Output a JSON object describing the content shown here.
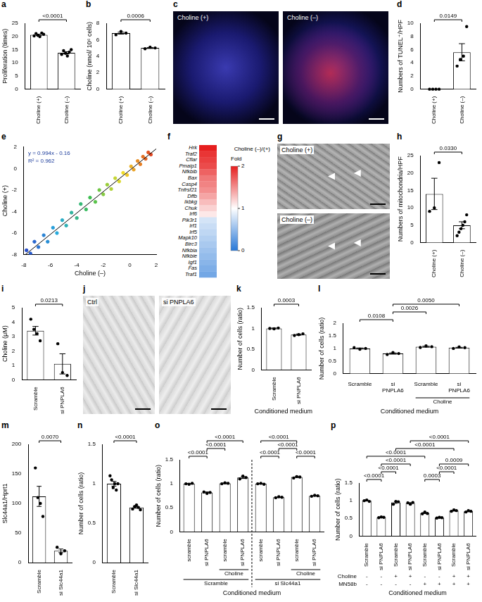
{
  "chart_data": [
    {
      "panel": "a",
      "type": "bar",
      "categories": [
        "Choline (+)",
        "Choline (–)"
      ],
      "y_label": "Proliferation (times)",
      "values": [
        20.6,
        13.8
      ],
      "errors": [
        0.25,
        0.4
      ],
      "points": [
        [
          20.2,
          21.1,
          20.4,
          19.9,
          21.3,
          20.8
        ],
        [
          13.2,
          14.6,
          13.6,
          12.6,
          14.1,
          15.0
        ]
      ],
      "ylim": [
        0,
        25
      ],
      "yticks": [
        0,
        5,
        10,
        15,
        20,
        25
      ],
      "comparisons": [
        {
          "from": 0,
          "to": 1,
          "label": "<0.0001"
        }
      ]
    },
    {
      "panel": "b",
      "type": "bar",
      "categories": [
        "Choline (+)",
        "Choline (–)"
      ],
      "y_label": "Choline (nmol/ 10⁶ cells)",
      "values": [
        6.8,
        5.0
      ],
      "errors": [
        0.12,
        0.06
      ],
      "points": [
        [
          6.6,
          7.0,
          6.8
        ],
        [
          4.9,
          5.1,
          5.0
        ]
      ],
      "ylim": [
        0,
        8
      ],
      "yticks": [
        0,
        2,
        4,
        6,
        8
      ],
      "comparisons": [
        {
          "from": 0,
          "to": 1,
          "label": "0.0006"
        }
      ]
    },
    {
      "panel": "d",
      "type": "bar",
      "categories": [
        "Choline (+)",
        "Choline (–)"
      ],
      "y_label": "Numbers of TUNEL⁺/HPF",
      "values": [
        0,
        5.6
      ],
      "errors": [
        0,
        1.3
      ],
      "points": [
        [
          0,
          0,
          0,
          0
        ],
        [
          3.5,
          4.5,
          5.0,
          9.5
        ]
      ],
      "ylim": [
        0,
        10
      ],
      "yticks": [
        0,
        2,
        4,
        6,
        8,
        10
      ],
      "comparisons": [
        {
          "from": 0,
          "to": 1,
          "label": "0.0149"
        }
      ]
    },
    {
      "panel": "e",
      "type": "scatter",
      "x_label": "Choline (–)",
      "y_label": "Choline (+)",
      "annotations": [
        "y = 0.994x - 0.16",
        "R² = 0.962"
      ],
      "x": [
        -7.8,
        -7.5,
        -7.2,
        -6.9,
        -6.5,
        -6.2,
        -5.8,
        -5.5,
        -5.1,
        -4.8,
        -4.4,
        -4.0,
        -3.7,
        -3.3,
        -3.0,
        -2.6,
        -2.3,
        -2.0,
        -1.7,
        -1.4,
        -1.1,
        -0.8,
        -0.5,
        -0.2,
        0.1,
        0.3,
        0.6,
        0.8,
        1.0,
        1.2,
        1.4,
        1.6
      ],
      "values": [
        -7.6,
        -7.9,
        -6.8,
        -7.3,
        -6.2,
        -6.8,
        -5.5,
        -6.0,
        -4.8,
        -5.3,
        -4.1,
        -4.6,
        -3.3,
        -3.8,
        -2.7,
        -3.1,
        -2.0,
        -2.4,
        -1.5,
        -1.9,
        -0.9,
        -1.2,
        -0.4,
        -0.6,
        0.2,
        -0.1,
        0.7,
        0.4,
        1.1,
        0.9,
        1.5,
        1.3
      ],
      "fit": {
        "x": [
          -8,
          2
        ],
        "values": [
          -8.112,
          1.828
        ]
      },
      "xlim": [
        -8,
        2
      ],
      "ylim": [
        -8,
        2
      ],
      "xticks": [
        -8,
        -6,
        -4,
        -2,
        0,
        2
      ],
      "yticks": [
        -8,
        -6,
        -4,
        -2,
        0,
        2
      ]
    },
    {
      "panel": "f",
      "type": "heatmap",
      "title": "Choline (–)/(+)",
      "rows": [
        "Hrk",
        "Traf2",
        "Cflar",
        "Pmaip1",
        "Nfkbib",
        "Bax",
        "Casp4",
        "Tnfrsf21",
        "Dffb",
        "Ikbkg",
        "Chuk",
        "Irf6",
        "Pik3r1",
        "Irf1",
        "Irf5",
        "Mapk10",
        "Birc3",
        "Nfkbia",
        "Nfkbie",
        "Igf1",
        "Fas",
        "Traf1"
      ],
      "values": [
        2.0,
        1.9,
        1.85,
        1.8,
        1.7,
        1.6,
        1.55,
        1.5,
        1.4,
        1.3,
        1.2,
        1.1,
        0.8,
        0.75,
        0.7,
        0.65,
        0.6,
        0.55,
        0.5,
        0.45,
        0.4,
        0.35
      ],
      "colorbar": {
        "label": "Fold",
        "range": [
          0,
          2
        ],
        "ticks": [
          0,
          1,
          2
        ]
      }
    },
    {
      "panel": "h",
      "type": "bar",
      "categories": [
        "Choline (+)",
        "Choline (–)"
      ],
      "y_label": "Numbers of mitochondria/HPF",
      "values": [
        14,
        5
      ],
      "errors": [
        4.5,
        1.0
      ],
      "points": [
        [
          9,
          10,
          23
        ],
        [
          2,
          3,
          4,
          5,
          6,
          8
        ]
      ],
      "ylim": [
        0,
        25
      ],
      "yticks": [
        0,
        5,
        10,
        15,
        20,
        25
      ],
      "comparisons": [
        {
          "from": 0,
          "to": 1,
          "label": "0.0330"
        }
      ]
    },
    {
      "panel": "i",
      "type": "bar",
      "categories": [
        "Scramble",
        "si PNPLA6"
      ],
      "y_label": "Choline (μM)",
      "values": [
        3.4,
        1.1
      ],
      "errors": [
        0.3,
        0.7
      ],
      "points": [
        [
          4.2,
          3.5,
          3.2,
          2.7
        ],
        [
          2.5,
          0.5,
          0.3
        ]
      ],
      "ylim": [
        0,
        5
      ],
      "yticks": [
        0,
        1,
        2,
        3,
        4,
        5
      ],
      "comparisons": [
        {
          "from": 0,
          "to": 1,
          "label": "0.0213"
        }
      ]
    },
    {
      "panel": "k",
      "type": "bar",
      "categories": [
        "Scramble",
        "si PNPLA6"
      ],
      "y_label": "Number of cells (ratio)",
      "x_label": "Conditioned medium",
      "values": [
        1.0,
        0.85
      ],
      "errors": [
        0.01,
        0.015
      ],
      "points": [
        [
          1.0,
          0.99,
          1.01
        ],
        [
          0.83,
          0.85,
          0.87
        ]
      ],
      "ylim": [
        0,
        1.5
      ],
      "yticks": [
        0,
        0.5,
        1,
        1.5
      ],
      "comparisons": [
        {
          "from": 0,
          "to": 1,
          "label": "0.0003"
        }
      ]
    },
    {
      "panel": "l",
      "type": "bar",
      "categories": [
        "Scramble",
        "si PNPLA6",
        "Scramble",
        "si PNPLA6"
      ],
      "y_label": "Number of cells (ratio)",
      "x_label": "Conditioned medium",
      "values": [
        1.0,
        0.8,
        1.07,
        1.03
      ],
      "errors": [
        0.02,
        0.025,
        0.02,
        0.015
      ],
      "points": [
        [
          1.03,
          0.97,
          1.0
        ],
        [
          0.76,
          0.84,
          0.8
        ],
        [
          1.04,
          1.1,
          1.07
        ],
        [
          1.0,
          1.06,
          1.03
        ]
      ],
      "ylim": [
        0,
        2
      ],
      "yticks": [
        0,
        0.5,
        1,
        1.5,
        2
      ],
      "comparisons": [
        {
          "from": 0,
          "to": 1,
          "label": "0.0108"
        },
        {
          "from": 1,
          "to": 2,
          "label": "0.0026"
        },
        {
          "from": 1,
          "to": 3,
          "label": "0.0050"
        }
      ],
      "groups": [
        [
          {
            "label": "Choline",
            "from": 2,
            "to": 3
          }
        ]
      ]
    },
    {
      "panel": "m",
      "type": "bar",
      "categories": [
        "Scramble",
        "si Slc44a1"
      ],
      "y_label": "Slc44a1/Hprt1",
      "values": [
        112,
        20
      ],
      "errors": [
        17,
        3
      ],
      "points": [
        [
          160,
          110,
          100,
          78
        ],
        [
          26,
          15,
          20
        ]
      ],
      "ylim": [
        0,
        200
      ],
      "yticks": [
        0,
        50,
        100,
        150,
        200
      ],
      "comparisons": [
        {
          "from": 0,
          "to": 1,
          "label": "0.0070"
        }
      ]
    },
    {
      "panel": "n",
      "type": "bar",
      "categories": [
        "Scramble",
        "si Slc44a1"
      ],
      "y_label": "Number of cells (ratio)",
      "values": [
        1.0,
        0.7
      ],
      "errors": [
        0.03,
        0.01
      ],
      "points": [
        [
          1.1,
          1.05,
          0.95,
          1.0,
          0.92,
          1.0
        ],
        [
          0.68,
          0.71,
          0.73,
          0.7,
          0.67
        ]
      ],
      "ylim": [
        0,
        1.5
      ],
      "yticks": [
        0,
        0.5,
        1,
        1.5
      ],
      "comparisons": [
        {
          "from": 0,
          "to": 1,
          "label": "<0.0001"
        }
      ]
    },
    {
      "panel": "o",
      "type": "bar",
      "categories": [
        "scramble",
        "si PNPLA6",
        "scramble",
        "si PNPLA6",
        "scramble",
        "si PNPLA6",
        "scramble",
        "si PNPLA6"
      ],
      "y_label": "Number of cells (ratio)",
      "x_label": "Conditioned medium",
      "values": [
        1.0,
        0.82,
        1.01,
        1.13,
        1.0,
        0.72,
        1.14,
        0.75
      ],
      "errors": [
        0.005,
        0.01,
        0.008,
        0.02,
        0.005,
        0.006,
        0.01,
        0.006
      ],
      "points": [
        [
          1.0,
          0.99,
          1.01
        ],
        [
          0.83,
          0.8,
          0.82
        ],
        [
          1.0,
          1.02,
          1.01
        ],
        [
          1.1,
          1.16,
          1.13
        ],
        [
          1.0,
          1.01,
          0.99
        ],
        [
          0.71,
          0.73,
          0.72
        ],
        [
          1.12,
          1.15,
          1.14
        ],
        [
          0.74,
          0.76,
          0.75
        ]
      ],
      "ylim": [
        0,
        1.5
      ],
      "yticks": [
        0,
        0.5,
        1,
        1.5
      ],
      "comparisons": [
        {
          "from": 0,
          "to": 1,
          "label": "<0.0001"
        },
        {
          "from": 1,
          "to": 2,
          "label": "<0.0001"
        },
        {
          "from": 1,
          "to": 3,
          "label": "<0.0001"
        },
        {
          "from": 4,
          "to": 5,
          "label": "<0.0001"
        },
        {
          "from": 5,
          "to": 6,
          "label": "<0.0001"
        },
        {
          "from": 6,
          "to": 7,
          "label": "<0.0001"
        },
        {
          "from": 4,
          "to": 6,
          "label": "<0.0001"
        }
      ],
      "groups": [
        [
          {
            "label": "Choline",
            "from": 2,
            "to": 3
          },
          {
            "label": "Choline",
            "from": 6,
            "to": 7
          }
        ],
        [
          {
            "label": "Scramble",
            "from": 0,
            "to": 3
          },
          {
            "label": "si Slc44a1",
            "from": 4,
            "to": 7
          }
        ]
      ]
    },
    {
      "panel": "p",
      "type": "bar",
      "categories": [
        "Scramble",
        "si PNPLA6",
        "Scramble",
        "si PNPLA6",
        "Scramble",
        "si PNPLA6",
        "Scramble",
        "si PNPLA6"
      ],
      "y_label": "Number of cells (ratio)",
      "x_label": "Conditioned medium",
      "values": [
        1.0,
        0.53,
        0.95,
        0.93,
        0.65,
        0.52,
        0.72,
        0.7
      ],
      "errors": [
        0.01,
        0.006,
        0.025,
        0.015,
        0.015,
        0.006,
        0.012,
        0.012
      ],
      "points": [
        [
          1.0,
          1.02,
          0.98
        ],
        [
          0.52,
          0.54,
          0.53
        ],
        [
          0.9,
          0.98,
          0.97
        ],
        [
          0.94,
          0.9,
          0.95
        ],
        [
          0.63,
          0.68,
          0.64
        ],
        [
          0.51,
          0.53,
          0.52
        ],
        [
          0.7,
          0.74,
          0.72
        ],
        [
          0.68,
          0.72,
          0.7
        ]
      ],
      "ylim": [
        0,
        1.5
      ],
      "yticks": [
        0,
        0.5,
        1,
        1.5
      ],
      "comparisons": [
        {
          "from": 0,
          "to": 1,
          "label": "<0.0001"
        },
        {
          "from": 1,
          "to": 2,
          "label": "<0.0001"
        },
        {
          "from": 1,
          "to": 3,
          "label": "<0.0001"
        },
        {
          "from": 4,
          "to": 5,
          "label": "0.0003"
        },
        {
          "from": 5,
          "to": 6,
          "label": "<0.0001"
        },
        {
          "from": 5,
          "to": 7,
          "label": "0.0009"
        },
        {
          "from": 0,
          "to": 4,
          "label": "<0.0001"
        },
        {
          "from": 2,
          "to": 6,
          "label": "<0.0001"
        },
        {
          "from": 3,
          "to": 7,
          "label": "<0.0001"
        }
      ],
      "conditions": [
        {
          "label": "Choline",
          "marks": [
            "-",
            "-",
            "+",
            "+",
            "-",
            "-",
            "+",
            "+"
          ]
        },
        {
          "label": "MN58b",
          "marks": [
            "-",
            "-",
            "-",
            "-",
            "+",
            "+",
            "+",
            "+"
          ]
        }
      ]
    }
  ],
  "image_panels": [
    {
      "panel": "c",
      "labels": [
        "Choline (+)",
        "Choline (–)"
      ]
    },
    {
      "panel": "g",
      "labels": [
        "Choline (+)",
        "Choline (–)"
      ]
    },
    {
      "panel": "j",
      "labels": [
        "Ctrl",
        "si PNPLA6"
      ]
    }
  ]
}
